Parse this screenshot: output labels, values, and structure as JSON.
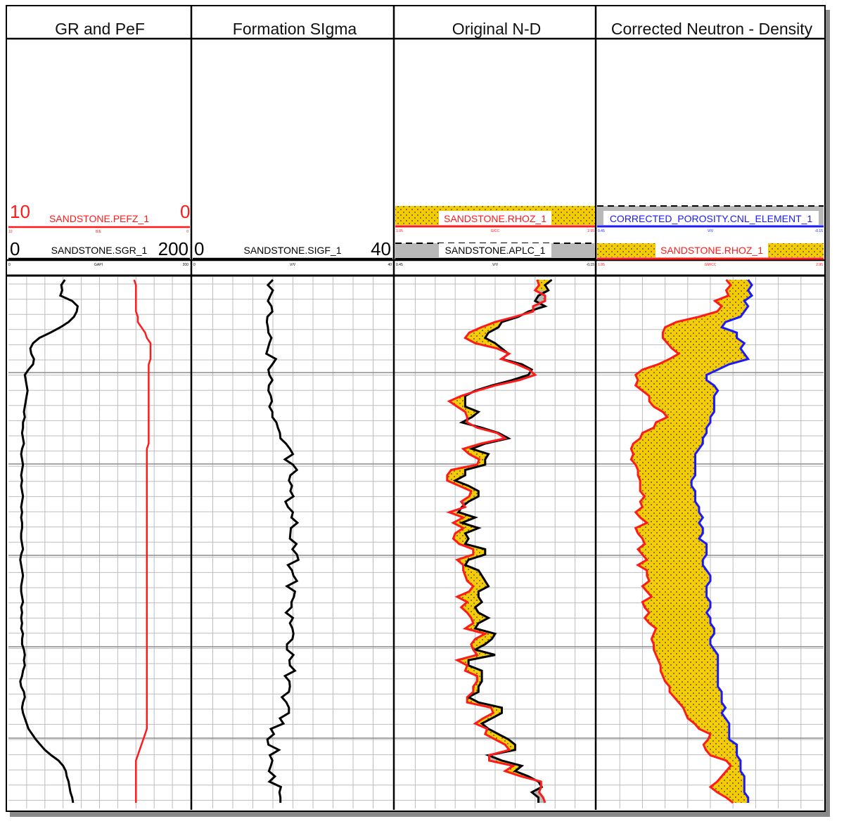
{
  "tracks": [
    {
      "title": "GR and PeF"
    },
    {
      "title": "Formation SIgma"
    },
    {
      "title": "Original N-D"
    },
    {
      "title": "Corrected Neutron - Density"
    }
  ],
  "headers": {
    "pefz": {
      "name": "SANDSTONE.PEFZ_1",
      "left": "10",
      "right": "0",
      "unit": "B/E",
      "left_small": "10",
      "right_small": "0"
    },
    "sgr": {
      "name": "SANDSTONE.SGR_1",
      "left": "0",
      "right": "200",
      "unit": "GAPI",
      "left_small": "0",
      "right_small": "200"
    },
    "sigf": {
      "name": "SANDSTONE.SIGF_1",
      "left": "0",
      "right": "40",
      "unit": "V/V",
      "left_small": "0",
      "right_small": "40"
    },
    "rhoz_orig": {
      "name": "SANDSTONE.RHOZ_1",
      "unit": "G/CC",
      "left_small": "1.95",
      "right_small": "2.95"
    },
    "aplc": {
      "name": "SANDSTONE.APLC_1",
      "unit": "V/V",
      "left_small": "0.45",
      "right_small": "-0.15"
    },
    "cnl": {
      "name": "CORRECTED_POROSITY.CNL_ELEMENT_1",
      "unit": "V/V",
      "left_small": "0.45",
      "right_small": "-0.15"
    },
    "rhoz_corr": {
      "name": "SANDSTONE.RHOZ_1",
      "unit": "GM/CC",
      "left_small": "1.95",
      "right_small": "2.95"
    }
  },
  "colors": {
    "red": "#ff1a1a",
    "black": "#000000",
    "blue": "#1a1aff",
    "yellow": "#f5cc00",
    "gray": "#b8b8b8",
    "grid": "#bdbdbd"
  },
  "chart_data": {
    "type": "line",
    "depth_samples": 100,
    "series": [
      {
        "name": "SANDSTONE.SGR_1",
        "unit": "GAPI",
        "range": [
          0,
          200
        ],
        "values": [
          62,
          58,
          59,
          57,
          70,
          76,
          75,
          72,
          66,
          57,
          46,
          34,
          27,
          24,
          25,
          28,
          27,
          22,
          18,
          19,
          20,
          21,
          20,
          19,
          18,
          17,
          18,
          16,
          16,
          15,
          16,
          17,
          15,
          14,
          15,
          16,
          15,
          14,
          15,
          14,
          15,
          16,
          15,
          14,
          15,
          14,
          15,
          15,
          14,
          14,
          15,
          16,
          14,
          13,
          14,
          15,
          16,
          15,
          14,
          14,
          15,
          16,
          14,
          15,
          14,
          15,
          14,
          16,
          15,
          15,
          17,
          18,
          17,
          18,
          16,
          15,
          13,
          14,
          17,
          18,
          16,
          15,
          16,
          18,
          20,
          22,
          26,
          30,
          35,
          40,
          47,
          55,
          60,
          63,
          64,
          66,
          67,
          68,
          70,
          71
        ]
      },
      {
        "name": "SANDSTONE.PEFZ_1",
        "unit": "B/E",
        "range": [
          10,
          0
        ],
        "values": [
          3.1,
          3.0,
          3.0,
          3.0,
          3.0,
          3.0,
          3.0,
          2.9,
          2.9,
          2.7,
          2.5,
          2.4,
          2.2,
          2.2,
          2.2,
          2.2,
          2.3,
          2.3,
          2.3,
          2.3,
          2.3,
          2.3,
          2.3,
          2.3,
          2.3,
          2.3,
          2.3,
          2.3,
          2.3,
          2.3,
          2.3,
          2.3,
          2.4,
          2.4,
          2.4,
          2.4,
          2.4,
          2.4,
          2.4,
          2.4,
          2.4,
          2.4,
          2.4,
          2.4,
          2.4,
          2.4,
          2.4,
          2.4,
          2.4,
          2.4,
          2.4,
          2.4,
          2.4,
          2.4,
          2.4,
          2.4,
          2.4,
          2.4,
          2.4,
          2.4,
          2.4,
          2.4,
          2.4,
          2.4,
          2.4,
          2.4,
          2.4,
          2.4,
          2.4,
          2.4,
          2.4,
          2.4,
          2.4,
          2.4,
          2.4,
          2.4,
          2.4,
          2.4,
          2.4,
          2.4,
          2.4,
          2.4,
          2.4,
          2.4,
          2.4,
          2.4,
          2.5,
          2.6,
          2.7,
          2.8,
          2.9,
          3.0,
          3.0,
          3.0,
          3.0,
          3.0,
          3.0,
          3.0,
          3.0,
          3.0
        ]
      },
      {
        "name": "SANDSTONE.SIGF_1",
        "unit": "V/V",
        "range": [
          0,
          40
        ],
        "values": [
          16.0,
          15.0,
          16.0,
          15.5,
          15.0,
          15.7,
          15.9,
          14.9,
          14.8,
          15.0,
          15.1,
          15.7,
          15.3,
          15.0,
          14.7,
          16.6,
          15.9,
          15.1,
          15.3,
          15.9,
          15.2,
          15.1,
          15.6,
          15.8,
          15.3,
          15.9,
          15.9,
          16.7,
          17.0,
          17.4,
          17.5,
          18.6,
          19.4,
          20.0,
          18.4,
          20.0,
          20.8,
          19.5,
          19.2,
          19.8,
          19.5,
          20.1,
          18.5,
          19.0,
          20.0,
          19.7,
          20.9,
          19.6,
          19.5,
          19.4,
          20.7,
          19.9,
          20.8,
          21.1,
          19.0,
          19.8,
          20.1,
          20.8,
          18.8,
          20.4,
          20.2,
          19.7,
          19.7,
          18.6,
          20.0,
          19.4,
          19.9,
          20.1,
          19.9,
          18.8,
          18.8,
          20.1,
          19.3,
          19.4,
          20.4,
          18.4,
          19.3,
          19.4,
          19.2,
          17.8,
          18.7,
          19.2,
          19.2,
          17.4,
          18.1,
          15.6,
          16.2,
          14.9,
          15.1,
          17.2,
          15.4,
          15.9,
          15.6,
          15.2,
          16.4,
          15.3,
          17.6,
          17.3,
          17.5,
          17.5
        ]
      },
      {
        "name": "SANDSTONE.RHOZ_1",
        "unit": "G/CC",
        "range": [
          1.95,
          2.95
        ],
        "values": [
          2.66,
          2.67,
          2.65,
          2.7,
          2.7,
          2.64,
          2.64,
          2.55,
          2.45,
          2.38,
          2.32,
          2.3,
          2.35,
          2.46,
          2.52,
          2.48,
          2.56,
          2.62,
          2.65,
          2.57,
          2.45,
          2.36,
          2.28,
          2.22,
          2.26,
          2.3,
          2.31,
          2.31,
          2.36,
          2.46,
          2.5,
          2.38,
          2.29,
          2.32,
          2.37,
          2.36,
          2.23,
          2.21,
          2.21,
          2.27,
          2.33,
          2.32,
          2.28,
          2.3,
          2.22,
          2.29,
          2.24,
          2.29,
          2.25,
          2.24,
          2.27,
          2.34,
          2.34,
          2.26,
          2.29,
          2.29,
          2.3,
          2.31,
          2.34,
          2.32,
          2.26,
          2.31,
          2.28,
          2.31,
          2.33,
          2.34,
          2.3,
          2.4,
          2.35,
          2.33,
          2.34,
          2.36,
          2.26,
          2.31,
          2.3,
          2.36,
          2.36,
          2.34,
          2.34,
          2.31,
          2.31,
          2.43,
          2.44,
          2.39,
          2.35,
          2.41,
          2.4,
          2.45,
          2.5,
          2.52,
          2.42,
          2.42,
          2.54,
          2.5,
          2.58,
          2.68,
          2.68,
          2.67,
          2.69,
          2.7
        ]
      },
      {
        "name": "SANDSTONE.APLC_1",
        "unit": "V/V",
        "range": [
          0.45,
          -0.15
        ],
        "values": [
          -0.02,
          0.0,
          -0.01,
          0.02,
          0.03,
          0.0,
          0.05,
          0.08,
          0.13,
          0.14,
          0.17,
          0.18,
          0.15,
          0.13,
          0.11,
          0.13,
          0.07,
          0.04,
          0.05,
          0.1,
          0.16,
          0.21,
          0.24,
          0.24,
          0.24,
          0.2,
          0.22,
          0.25,
          0.19,
          0.14,
          0.11,
          0.18,
          0.22,
          0.17,
          0.18,
          0.18,
          0.24,
          0.24,
          0.27,
          0.23,
          0.2,
          0.2,
          0.23,
          0.25,
          0.26,
          0.21,
          0.25,
          0.2,
          0.24,
          0.23,
          0.24,
          0.18,
          0.18,
          0.23,
          0.24,
          0.2,
          0.19,
          0.18,
          0.17,
          0.2,
          0.2,
          0.19,
          0.21,
          0.2,
          0.17,
          0.2,
          0.21,
          0.15,
          0.16,
          0.18,
          0.21,
          0.15,
          0.23,
          0.23,
          0.19,
          0.19,
          0.19,
          0.2,
          0.2,
          0.23,
          0.2,
          0.13,
          0.13,
          0.16,
          0.19,
          0.17,
          0.14,
          0.11,
          0.09,
          0.09,
          0.17,
          0.13,
          0.07,
          0.09,
          0.05,
          0.02,
          0.01,
          0.04,
          0.02,
          0.02
        ]
      },
      {
        "name": "CORRECTED_POROSITY.CNL_ELEMENT_1",
        "unit": "V/V",
        "range": [
          0.45,
          -0.15
        ],
        "values": [
          0.05,
          0.04,
          0.05,
          0.04,
          0.06,
          0.05,
          0.06,
          0.07,
          0.11,
          0.12,
          0.08,
          0.08,
          0.06,
          0.07,
          0.06,
          0.05,
          0.1,
          0.13,
          0.16,
          0.16,
          0.14,
          0.13,
          0.14,
          0.14,
          0.14,
          0.14,
          0.15,
          0.15,
          0.16,
          0.16,
          0.17,
          0.17,
          0.18,
          0.19,
          0.19,
          0.19,
          0.19,
          0.19,
          0.2,
          0.2,
          0.19,
          0.19,
          0.19,
          0.18,
          0.18,
          0.17,
          0.18,
          0.17,
          0.17,
          0.18,
          0.16,
          0.16,
          0.16,
          0.17,
          0.17,
          0.16,
          0.15,
          0.15,
          0.16,
          0.16,
          0.16,
          0.15,
          0.15,
          0.16,
          0.15,
          0.15,
          0.14,
          0.14,
          0.15,
          0.15,
          0.14,
          0.13,
          0.13,
          0.13,
          0.13,
          0.13,
          0.13,
          0.13,
          0.12,
          0.12,
          0.12,
          0.11,
          0.12,
          0.11,
          0.1,
          0.1,
          0.1,
          0.1,
          0.08,
          0.08,
          0.08,
          0.07,
          0.07,
          0.07,
          0.06,
          0.06,
          0.06,
          0.06,
          0.05,
          0.05
        ]
      },
      {
        "name": "SANDSTONE.RHOZ_1",
        "unit": "GM/CC",
        "range": [
          1.95,
          2.95
        ],
        "values": [
          2.52,
          2.54,
          2.52,
          2.53,
          2.47,
          2.5,
          2.48,
          2.4,
          2.3,
          2.25,
          2.24,
          2.24,
          2.26,
          2.28,
          2.31,
          2.27,
          2.22,
          2.15,
          2.12,
          2.13,
          2.12,
          2.15,
          2.18,
          2.18,
          2.2,
          2.24,
          2.26,
          2.21,
          2.2,
          2.15,
          2.14,
          2.11,
          2.1,
          2.11,
          2.1,
          2.12,
          2.13,
          2.13,
          2.14,
          2.14,
          2.14,
          2.16,
          2.14,
          2.15,
          2.12,
          2.14,
          2.17,
          2.12,
          2.13,
          2.15,
          2.16,
          2.13,
          2.15,
          2.17,
          2.13,
          2.17,
          2.17,
          2.18,
          2.15,
          2.17,
          2.19,
          2.15,
          2.16,
          2.18,
          2.16,
          2.18,
          2.21,
          2.2,
          2.19,
          2.2,
          2.2,
          2.21,
          2.22,
          2.23,
          2.23,
          2.24,
          2.25,
          2.27,
          2.27,
          2.29,
          2.31,
          2.33,
          2.34,
          2.35,
          2.38,
          2.4,
          2.45,
          2.44,
          2.42,
          2.43,
          2.45,
          2.52,
          2.54,
          2.52,
          2.5,
          2.48,
          2.45,
          2.48,
          2.52,
          2.55
        ]
      }
    ]
  }
}
